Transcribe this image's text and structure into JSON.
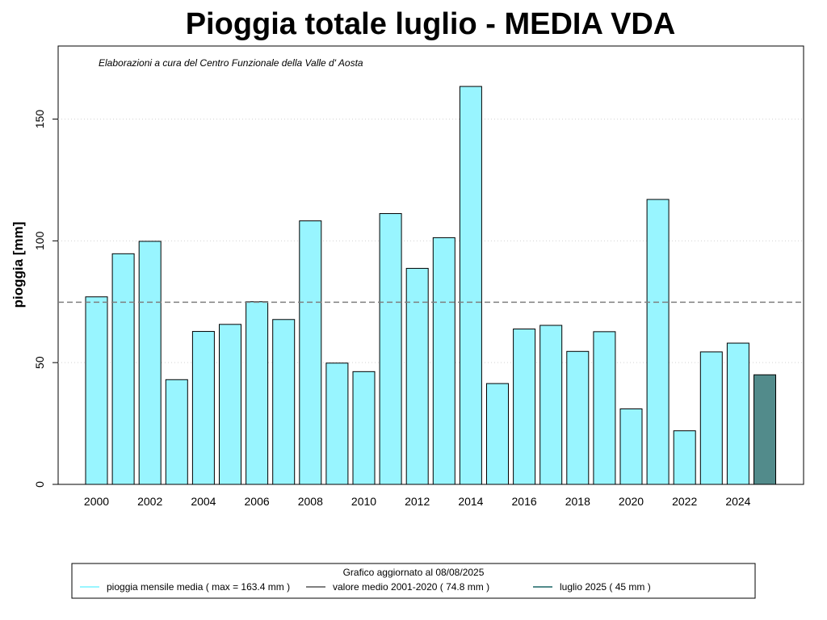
{
  "chart_data": {
    "type": "bar",
    "title": "Pioggia totale  luglio - MEDIA VDA",
    "subtitle": "Elaborazioni a cura del Centro Funzionale della Valle d' Aosta",
    "ylabel": "pioggia [mm]",
    "xlabel": "",
    "ylim": [
      0,
      180
    ],
    "yticks": [
      0,
      50,
      100,
      150
    ],
    "grid": "horizontal dotted",
    "categories": [
      2000,
      2001,
      2002,
      2003,
      2004,
      2005,
      2006,
      2007,
      2008,
      2009,
      2010,
      2011,
      2012,
      2013,
      2014,
      2015,
      2016,
      2017,
      2018,
      2019,
      2020,
      2021,
      2022,
      2023,
      2024,
      2025
    ],
    "xtick_labels": [
      "2000",
      "2002",
      "2004",
      "2006",
      "2008",
      "2010",
      "2012",
      "2014",
      "2016",
      "2018",
      "2020",
      "2022",
      "2024"
    ],
    "values": [
      77.0,
      94.7,
      99.8,
      43.0,
      62.8,
      65.7,
      75.0,
      67.7,
      108.2,
      49.8,
      46.3,
      111.2,
      88.7,
      101.3,
      163.4,
      41.4,
      63.8,
      65.3,
      54.6,
      62.7,
      31.0,
      117.0,
      22.0,
      54.4,
      58.0,
      45.0
    ],
    "highlight_index": 25,
    "mean_line": 74.8,
    "colors": {
      "bar": "#98f5ff",
      "highlight": "#528b8b",
      "mean": "#7f7f7f",
      "outline": "#000000",
      "grid": "#d3d3d3"
    },
    "legend": {
      "placement": "bottom",
      "title": "Grafico aggiornato al 08/08/2025",
      "items": [
        {
          "label": "pioggia mensile media ( max =  163.4  mm )",
          "color": "#98f5ff"
        },
        {
          "label": "valore medio 2001-2020 (  74.8  mm )",
          "color": "#7f7f7f"
        },
        {
          "label": "luglio 2025 (  45  mm )",
          "color": "#528b8b"
        }
      ]
    }
  }
}
